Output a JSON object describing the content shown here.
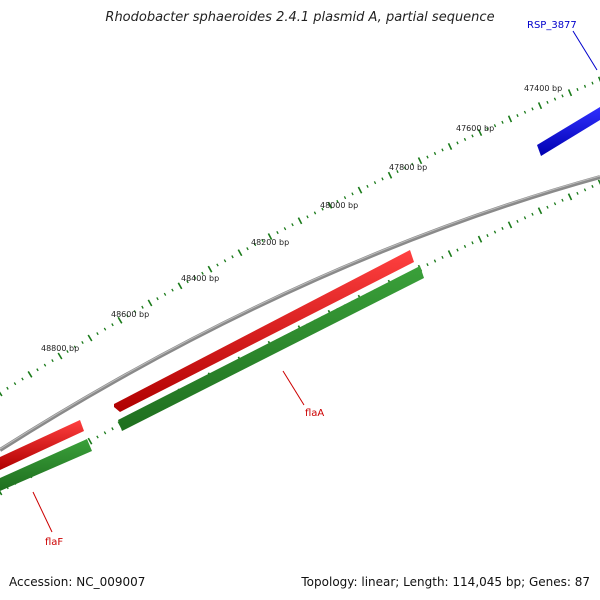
{
  "title": "Rhodobacter sphaeroides 2.4.1 plasmid A, partial sequence",
  "footer": {
    "accession": "Accession: NC_009007",
    "summary": "Topology: linear; Length: 114,045 bp; Genes: 87"
  },
  "colors": {
    "backbone": "#8a8a8a",
    "forward_strand": "#e00000",
    "reverse_strand": "#2e8b2e",
    "highlight_gene": "#0000e0",
    "tick": "#1a7a1a",
    "blue_label": "#0000cc",
    "red_label": "#cc0000"
  },
  "ruler": {
    "labels": [
      "47400 bp",
      "47600 bp",
      "47800 bp",
      "48000 bp",
      "48200 bp",
      "48400 bp",
      "48600 bp",
      "48800 bp"
    ]
  },
  "genes": [
    {
      "name": "RSP_3877",
      "strand": "forward",
      "color": "blue"
    },
    {
      "name": "flaA",
      "strand": "reverse",
      "color": "red"
    },
    {
      "name": "flaF",
      "strand": "reverse",
      "color": "red"
    }
  ]
}
